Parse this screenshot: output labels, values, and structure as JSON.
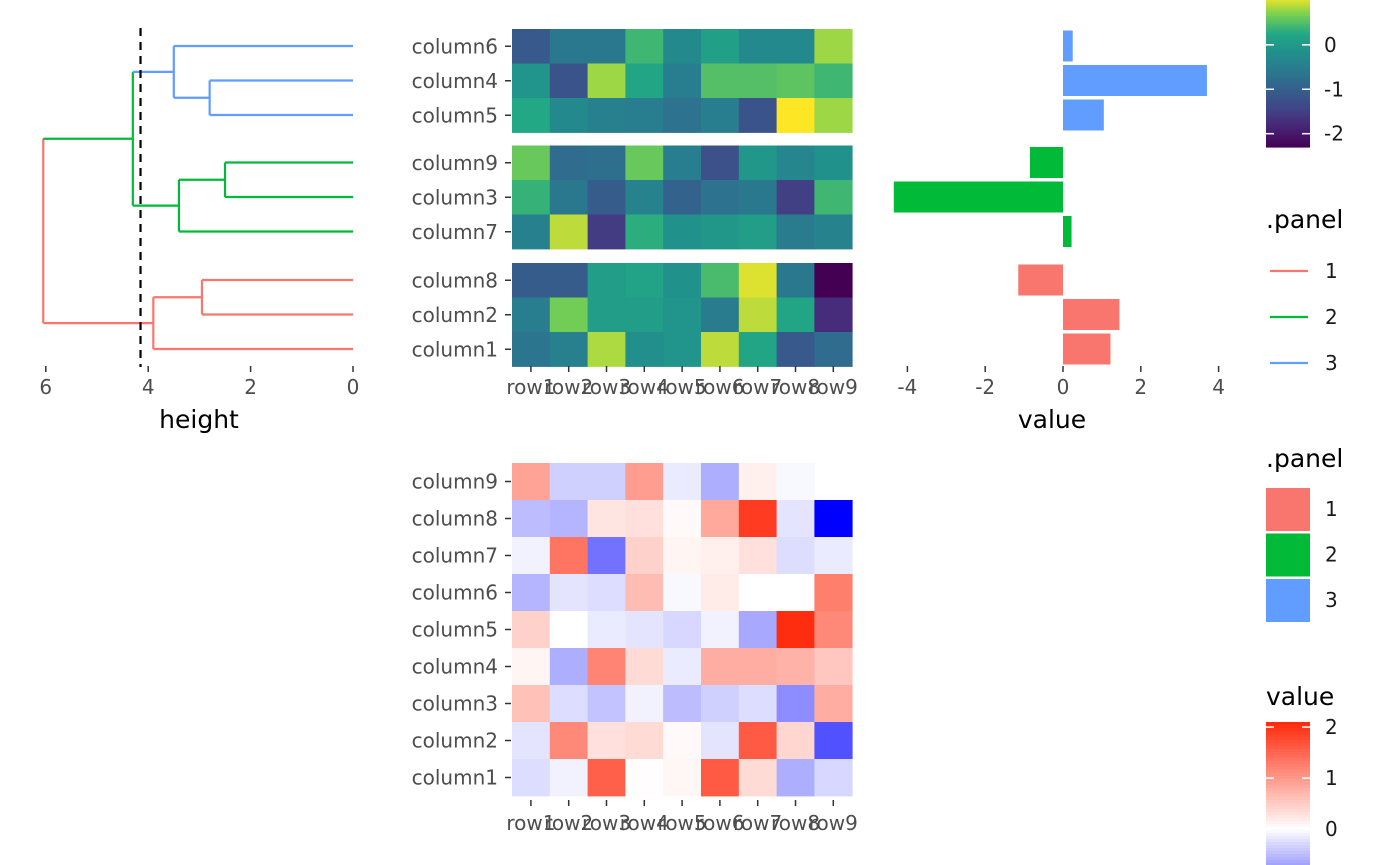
{
  "chart_data": [
    {
      "type": "dendrogram",
      "xlabel": "height",
      "x_ticks": [
        6,
        4,
        2,
        0
      ],
      "xlim": [
        6.1,
        0
      ],
      "cut_height": 4.15,
      "leaves": [
        "column6",
        "column4",
        "column5",
        "column9",
        "column3",
        "column7",
        "column8",
        "column2",
        "column1"
      ],
      "merges": [
        {
          "id": "a",
          "left": "column4",
          "right": "column5",
          "height": 2.8,
          "panel": "3"
        },
        {
          "id": "b",
          "left": "column6",
          "right": "a",
          "height": 3.5,
          "panel": "3"
        },
        {
          "id": "c",
          "left": "column9",
          "right": "column3",
          "height": 2.5,
          "panel": "2"
        },
        {
          "id": "d",
          "left": "c",
          "right": "column7",
          "height": 3.4,
          "panel": "2"
        },
        {
          "id": "e",
          "left": "b",
          "right": "d",
          "height": 4.3,
          "panel": "2"
        },
        {
          "id": "f",
          "left": "column8",
          "right": "column2",
          "height": 2.95,
          "panel": "1"
        },
        {
          "id": "g",
          "left": "f",
          "right": "column1",
          "height": 3.9,
          "panel": "1"
        },
        {
          "id": "h",
          "left": "e",
          "right": "g",
          "height": 6.05,
          "panel": "1"
        }
      ]
    },
    {
      "type": "heatmap",
      "x": [
        "row1",
        "row2",
        "row3",
        "row4",
        "row5",
        "row6",
        "row7",
        "row8",
        "row9"
      ],
      "panels": [
        {
          "rows": [
            "column6",
            "column4",
            "column5"
          ],
          "values": [
            [
              -1.1,
              -0.6,
              -0.6,
              0.4,
              -0.3,
              0.1,
              -0.3,
              -0.3,
              0.8
            ],
            [
              -0.1,
              -1.2,
              0.8,
              0.2,
              -0.5,
              0.5,
              0.5,
              0.55,
              0.4
            ],
            [
              0.25,
              -0.3,
              -0.45,
              -0.5,
              -0.7,
              -0.5,
              -1.2,
              1.1,
              0.8
            ]
          ]
        },
        {
          "rows": [
            "column9",
            "column3",
            "column7"
          ],
          "values": [
            [
              0.6,
              -0.8,
              -0.75,
              0.6,
              -0.5,
              -1.25,
              -0.05,
              -0.35,
              -0.15
            ],
            [
              0.35,
              -0.6,
              -1.05,
              -0.4,
              -0.95,
              -0.7,
              -0.6,
              -1.5,
              0.4
            ],
            [
              -0.45,
              0.9,
              -1.55,
              0.3,
              -0.15,
              -0.05,
              0.05,
              -0.55,
              -0.4
            ]
          ]
        },
        {
          "rows": [
            "column8",
            "column2",
            "column1"
          ],
          "values": [
            [
              -1.05,
              -1.05,
              0.05,
              0.15,
              -0.15,
              0.45,
              1.0,
              -0.6,
              -2.3
            ],
            [
              -0.5,
              0.65,
              0.05,
              0.05,
              -0.1,
              -0.55,
              0.9,
              0.2,
              -1.75
            ],
            [
              -0.65,
              -0.45,
              0.85,
              -0.2,
              -0.1,
              0.9,
              0.2,
              -1.1,
              -0.8
            ]
          ]
        }
      ],
      "legend": {
        "title": "",
        "ticks": [
          0,
          -1,
          -2
        ],
        "range": [
          -2.3,
          1.1
        ],
        "palette": "viridis"
      }
    },
    {
      "type": "bar",
      "orientation": "horizontal",
      "xlabel": "value",
      "x_ticks": [
        -4,
        -2,
        0,
        2,
        4
      ],
      "xlim": [
        -4.5,
        4.5
      ],
      "categories": [
        "column6",
        "column4",
        "column5",
        "column9",
        "column3",
        "column7",
        "column8",
        "column2",
        "column1"
      ],
      "values": [
        0.25,
        3.7,
        1.05,
        -0.85,
        -4.35,
        0.22,
        -1.15,
        1.45,
        1.22
      ],
      "panel": [
        "3",
        "3",
        "3",
        "2",
        "2",
        "2",
        "1",
        "1",
        "1"
      ],
      "legend": {
        "title": ".panel",
        "entries": [
          "1",
          "2",
          "3"
        ],
        "colors": [
          "#F8766D",
          "#00BA38",
          "#619CFF"
        ]
      }
    },
    {
      "type": "heatmap",
      "x": [
        "row1",
        "row2",
        "row3",
        "row4",
        "row5",
        "row6",
        "row7",
        "row8",
        "row9"
      ],
      "y": [
        "column9",
        "column8",
        "column7",
        "column6",
        "column5",
        "column4",
        "column3",
        "column2",
        "column1"
      ],
      "values": [
        [
          0.9,
          -0.35,
          -0.35,
          0.95,
          -0.15,
          -0.6,
          0.15,
          -0.05,
          null
        ],
        [
          -0.5,
          -0.55,
          0.25,
          0.3,
          0.05,
          0.85,
          1.9,
          -0.2,
          -1.9
        ],
        [
          -0.1,
          1.35,
          -1.05,
          0.45,
          0.1,
          0.15,
          0.3,
          -0.25,
          -0.15
        ],
        [
          -0.55,
          -0.2,
          -0.25,
          0.65,
          -0.05,
          0.2,
          0.0,
          0.0,
          1.25
        ],
        [
          0.45,
          0.0,
          -0.15,
          -0.2,
          -0.3,
          -0.1,
          -0.65,
          2.05,
          1.15
        ],
        [
          0.1,
          -0.6,
          1.2,
          0.35,
          -0.15,
          0.8,
          0.8,
          0.75,
          0.55
        ],
        [
          0.6,
          -0.25,
          -0.45,
          -0.1,
          -0.5,
          -0.35,
          -0.25,
          -0.85,
          0.8
        ],
        [
          -0.2,
          1.15,
          0.3,
          0.35,
          0.05,
          -0.2,
          1.6,
          0.4,
          -1.3
        ],
        [
          -0.25,
          -0.1,
          1.55,
          0.02,
          0.08,
          1.6,
          0.35,
          -0.6,
          -0.3
        ]
      ],
      "legend": {
        "title": "value",
        "ticks": [
          2,
          1,
          0
        ],
        "range": [
          -1.9,
          2.1
        ],
        "palette": "blue-white-red"
      }
    }
  ],
  "panel_legend": {
    "title": ".panel",
    "entries": [
      "1",
      "2",
      "3"
    ],
    "colors": [
      "#F8766D",
      "#00BA38",
      "#619CFF"
    ]
  }
}
